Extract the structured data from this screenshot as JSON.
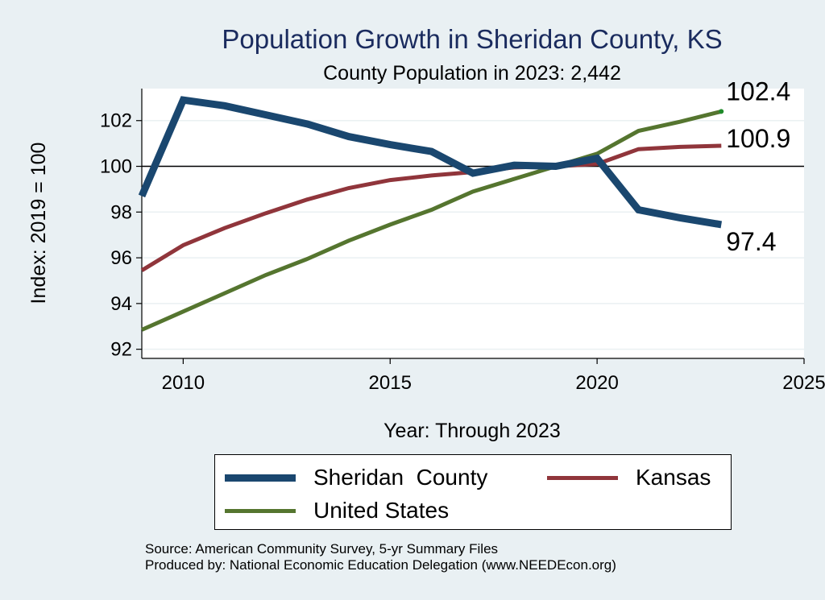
{
  "chart_data": {
    "type": "line",
    "title": "Population Growth in Sheridan County, KS",
    "subtitle": "County Population in 2023: 2,442",
    "xlabel": "Year: Through 2023",
    "ylabel": "Index: 2019 = 100",
    "xlim": [
      2009,
      2025
    ],
    "ylim": [
      91.6,
      103.4
    ],
    "x_ticks": [
      2010,
      2015,
      2020,
      2025
    ],
    "y_ticks": [
      92,
      94,
      96,
      98,
      100,
      102
    ],
    "reference_line_y": 100,
    "grid": true,
    "legend_position": "bottom",
    "x": [
      2009,
      2010,
      2011,
      2012,
      2013,
      2014,
      2015,
      2016,
      2017,
      2018,
      2019,
      2020,
      2021,
      2022,
      2023
    ],
    "series": [
      {
        "name": "Sheridan  County",
        "color": "#1a476f",
        "values": [
          98.7,
          102.9,
          102.65,
          102.25,
          101.85,
          101.3,
          100.95,
          100.65,
          99.7,
          100.05,
          100.0,
          100.35,
          98.1,
          97.75,
          97.45
        ],
        "end_label": "97.4"
      },
      {
        "name": "Kansas",
        "color": "#90353b",
        "values": [
          95.45,
          96.55,
          97.3,
          97.95,
          98.55,
          99.05,
          99.4,
          99.6,
          99.75,
          99.95,
          100.0,
          100.1,
          100.75,
          100.85,
          100.9
        ],
        "end_label": "100.9"
      },
      {
        "name": "United States",
        "color": "#55752f",
        "values": [
          92.85,
          93.65,
          94.45,
          95.25,
          95.95,
          96.75,
          97.45,
          98.1,
          98.9,
          99.45,
          100.0,
          100.55,
          101.55,
          101.95,
          102.4
        ],
        "end_label": "102.4"
      }
    ]
  },
  "source_text": "Source: American Community Survey, 5-yr Summary Files",
  "produced_text": "Produced by: National Economic Education Delegation (www.NEEDEcon.org)"
}
